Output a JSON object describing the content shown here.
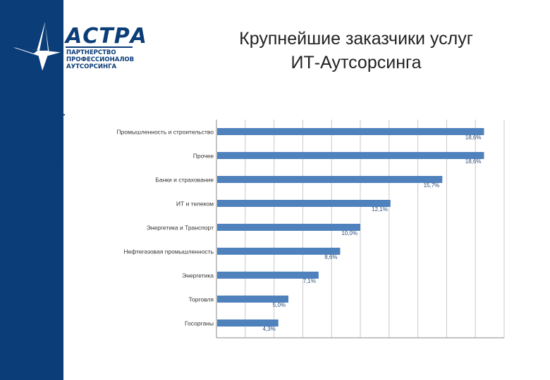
{
  "colors": {
    "brand": "#0b3d78",
    "bar": "#4f81bd",
    "grid": "#c8c8c8",
    "text": "#222222"
  },
  "sidebar": {
    "url": "www.astra-partners.ru"
  },
  "logo": {
    "brand": "АСТРА",
    "subtitle_lines": [
      "ПАРТНЕРСТВО",
      "ПРОФЕССИОНАЛОВ",
      "АУТСОРСИНГА"
    ],
    "icon": "star-a-logo-icon"
  },
  "slide": {
    "title_lines": [
      "Крупнейшие заказчики услуг",
      "ИТ-Аутсорсинга"
    ]
  },
  "chart_data": {
    "type": "bar",
    "orientation": "horizontal",
    "categories": [
      "Промышленность и строительство",
      "Прочее",
      "Банки и страхование",
      "ИТ и телеком",
      "Энергетика и Транспорт",
      "Нефтегазовая промышленность",
      "Энергетика",
      "Торговля",
      "Госорганы"
    ],
    "values": [
      18.6,
      18.6,
      15.7,
      12.1,
      10.0,
      8.6,
      7.1,
      5.0,
      4.3
    ],
    "data_labels": [
      "18,6%",
      "18,6%",
      "15,7%",
      "12,1%",
      "10,0%",
      "8,6%",
      "7,1%",
      "5,0%",
      "4,3%"
    ],
    "xlim": [
      0,
      20
    ],
    "grid": "vertical",
    "legend": "none"
  }
}
